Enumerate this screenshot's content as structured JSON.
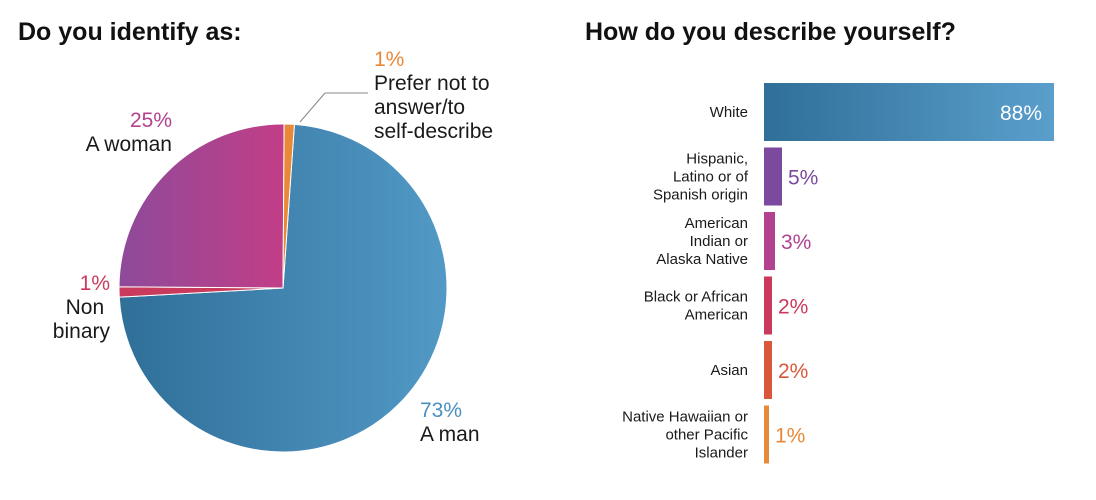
{
  "chart_data": [
    {
      "type": "pie",
      "title": "Do you identify as:",
      "slices": [
        {
          "label": "A man",
          "value": 73,
          "pct_label": "73%",
          "color": "#3a7fae"
        },
        {
          "label": "Non binary",
          "value": 1,
          "pct_label": "1%",
          "color": "#c93a5c"
        },
        {
          "label": "A woman",
          "value": 25,
          "pct_label": "25%",
          "color": "#b2428f"
        },
        {
          "label": "Prefer not to answer/to self-describe",
          "value": 1,
          "pct_label": "1%",
          "color": "#e8893a"
        }
      ]
    },
    {
      "type": "bar",
      "orientation": "horizontal",
      "title": "How do you describe yourself?",
      "categories": [
        "White",
        "Hispanic, Latino or of Spanish origin",
        "American Indian or Alaska Native",
        "Black or African American",
        "Asian",
        "Native Hawaiian or other Pacific Islander"
      ],
      "values": [
        88,
        5,
        3,
        2,
        2,
        1
      ],
      "value_labels": [
        "88%",
        "5%",
        "3%",
        "2%",
        "2%",
        "1%"
      ],
      "colors": [
        "#3a7fae",
        "#7b4a9e",
        "#b2428f",
        "#c93a5c",
        "#d9573a",
        "#e8893a"
      ],
      "xlim": [
        0,
        88
      ]
    }
  ]
}
